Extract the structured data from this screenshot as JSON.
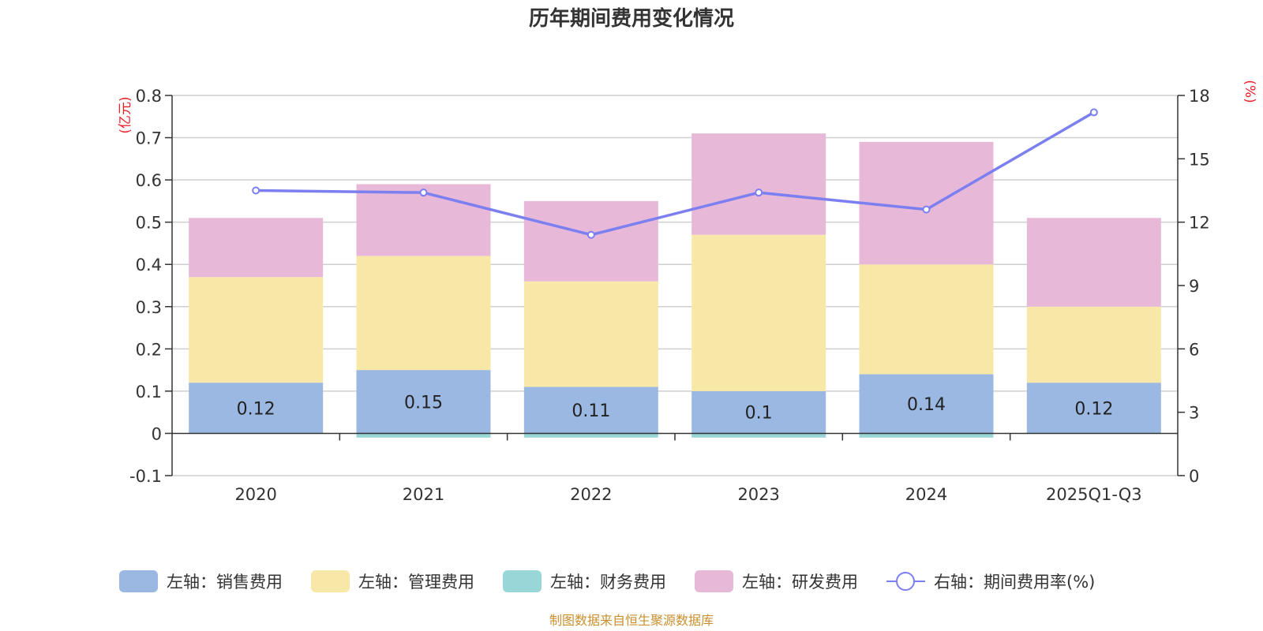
{
  "chart_data": {
    "type": "bar",
    "stacked": true,
    "title": "历年期间费用变化情况",
    "categories": [
      "2020",
      "2021",
      "2022",
      "2023",
      "2024",
      "2025Q1-Q3"
    ],
    "series": [
      {
        "name": "左轴：销售费用",
        "axis": "left",
        "color": "#9bb8e2",
        "values": [
          0.12,
          0.15,
          0.11,
          0.1,
          0.14,
          0.12
        ],
        "labels": [
          "0.12",
          "0.15",
          "0.11",
          "0.1",
          "0.14",
          "0.12"
        ]
      },
      {
        "name": "左轴：管理费用",
        "axis": "left",
        "color": "#f8e8a8",
        "values": [
          0.25,
          0.27,
          0.25,
          0.37,
          0.26,
          0.18
        ]
      },
      {
        "name": "左轴：财务费用",
        "axis": "left",
        "color": "#98d6d8",
        "values": [
          0.0,
          -0.01,
          -0.01,
          -0.01,
          -0.01,
          0.0
        ]
      },
      {
        "name": "左轴：研发费用",
        "axis": "left",
        "color": "#e8b8d9",
        "values": [
          0.14,
          0.17,
          0.19,
          0.24,
          0.29,
          0.21
        ]
      }
    ],
    "line_series": {
      "name": "右轴：期间费用率(%)",
      "axis": "right",
      "color": "#7b7ff0",
      "values": [
        13.5,
        13.4,
        11.4,
        13.4,
        12.6,
        17.2
      ]
    },
    "left_axis": {
      "unit": "(亿元)",
      "ylim": [
        -0.1,
        0.8
      ],
      "ticks": [
        -0.1,
        0,
        0.1,
        0.2,
        0.3,
        0.4,
        0.5,
        0.6,
        0.7,
        0.8
      ],
      "tick_labels": [
        "-0.1",
        "0",
        "0.1",
        "0.2",
        "0.3",
        "0.4",
        "0.5",
        "0.6",
        "0.7",
        "0.8"
      ]
    },
    "right_axis": {
      "unit": "(%)",
      "ylim": [
        0,
        18
      ],
      "ticks": [
        0,
        3,
        6,
        9,
        12,
        15,
        18
      ],
      "tick_labels": [
        "0",
        "3",
        "6",
        "9",
        "12",
        "15",
        "18"
      ]
    },
    "legend_position": "bottom",
    "grid": true
  },
  "source_note": "制图数据来自恒生聚源数据库"
}
